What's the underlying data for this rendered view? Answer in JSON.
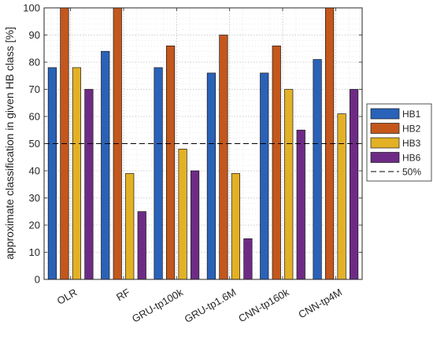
{
  "chart_data": {
    "type": "bar",
    "title": "",
    "xlabel": "",
    "ylabel": "approximate classification in given HB class [%]",
    "categories": [
      "OLR",
      "RF",
      "GRU-tp100k",
      "GRU-tp1.6M",
      "CNN-tp160k",
      "CNN-tp4M"
    ],
    "ylim": [
      0,
      100
    ],
    "yticks": [
      0,
      10,
      20,
      30,
      40,
      50,
      60,
      70,
      80,
      90,
      100
    ],
    "grid": "on (dotted, with minor grid)",
    "legend_placement": "right (outside, vertically centered)",
    "series": [
      {
        "name": "HB1",
        "color": "#2a62b8",
        "values": [
          78,
          84,
          78,
          76,
          76,
          81
        ]
      },
      {
        "name": "HB2",
        "color": "#c4571c",
        "values": [
          100,
          100,
          86,
          90,
          86,
          100
        ]
      },
      {
        "name": "HB3",
        "color": "#e3b126",
        "values": [
          78,
          39,
          48,
          39,
          70,
          61
        ]
      },
      {
        "name": "HB6",
        "color": "#6e2b85",
        "values": [
          70,
          25,
          40,
          15,
          55,
          70
        ]
      }
    ],
    "reference_line": {
      "label": "50%",
      "value": 50,
      "style": "dashed",
      "color": "#000000"
    }
  }
}
